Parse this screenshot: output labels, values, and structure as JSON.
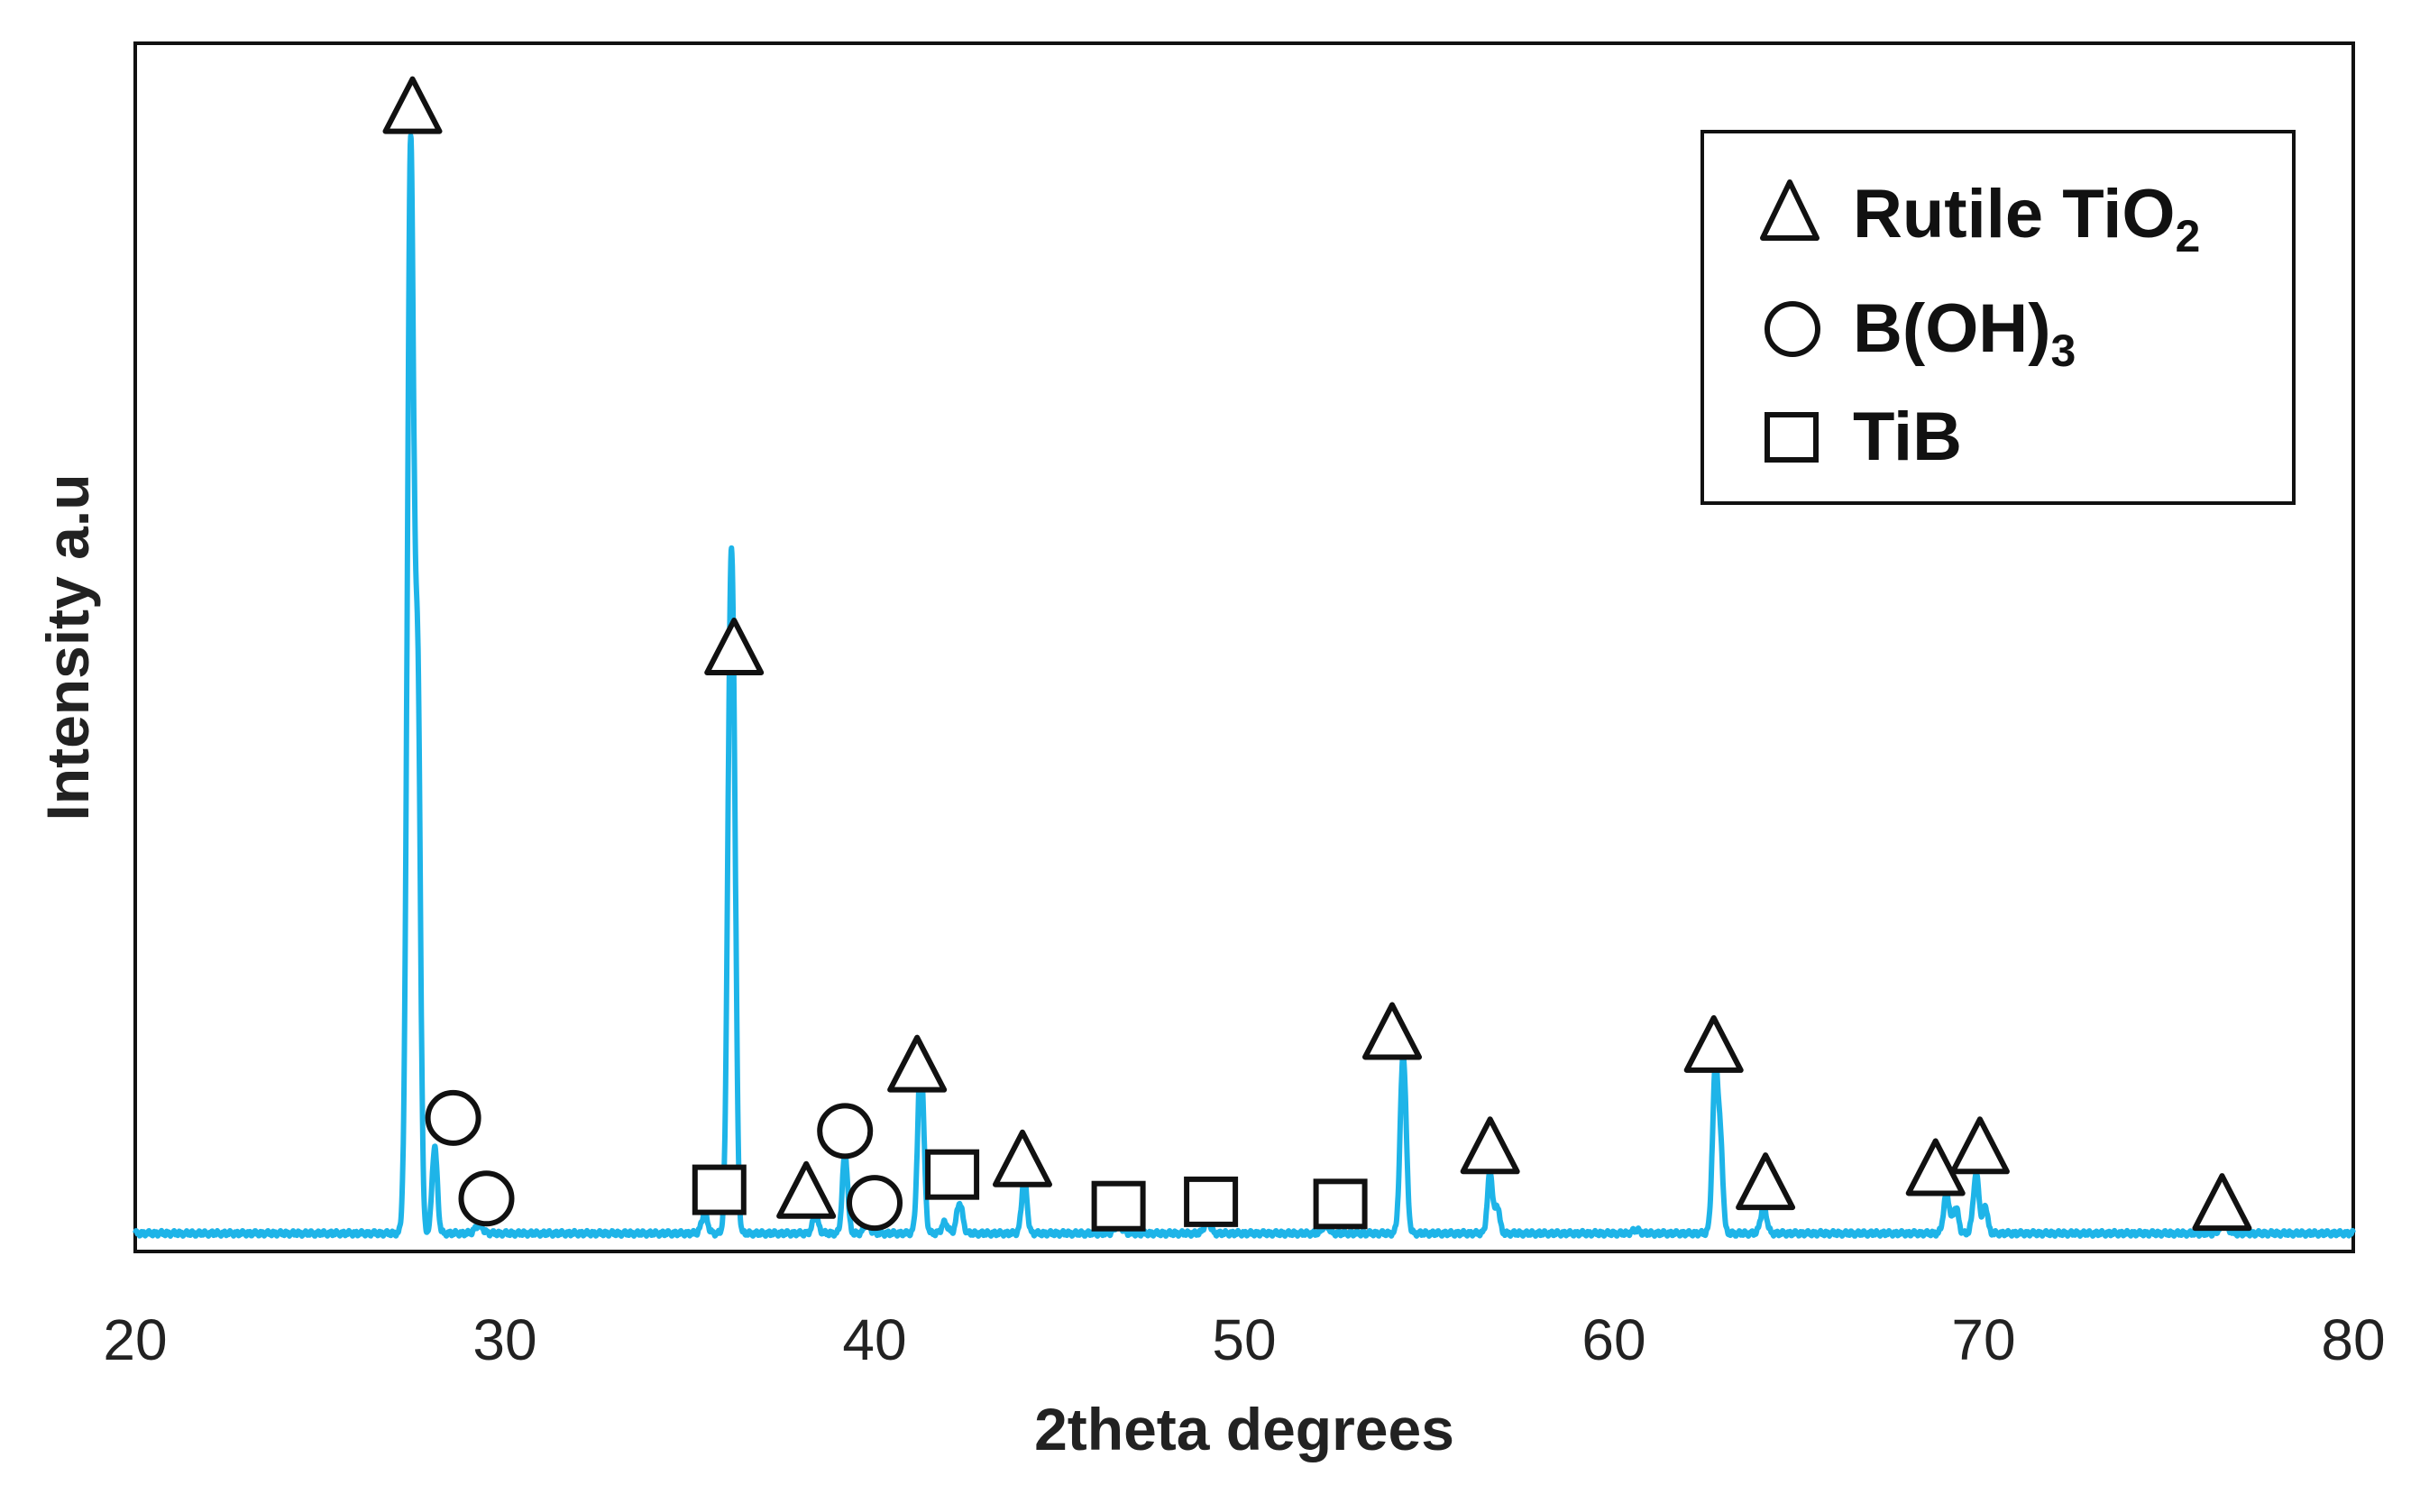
{
  "chart_data": {
    "type": "line",
    "title": "",
    "xlabel": "2theta degrees",
    "ylabel": "Intensity a.u",
    "xlim": [
      20,
      80
    ],
    "ylim": [
      0,
      100
    ],
    "xticks": [
      "20",
      "30",
      "40",
      "50",
      "60",
      "70",
      "80"
    ],
    "line_color": "#1EB4E8",
    "series": [
      {
        "name": "XRD pattern",
        "baseline": 1,
        "peaks": [
          {
            "x": 27.45,
            "h": 100,
            "w": 0.09
          },
          {
            "x": 27.65,
            "h": 45,
            "w": 0.07
          },
          {
            "x": 28.1,
            "h": 8,
            "w": 0.07
          },
          {
            "x": 29.3,
            "h": 0.8,
            "w": 0.1
          },
          {
            "x": 35.4,
            "h": 1.8,
            "w": 0.08
          },
          {
            "x": 36.1,
            "h": 51,
            "w": 0.08
          },
          {
            "x": 36.2,
            "h": 25,
            "w": 0.07
          },
          {
            "x": 38.4,
            "h": 1.5,
            "w": 0.08
          },
          {
            "x": 39.2,
            "h": 7.5,
            "w": 0.07
          },
          {
            "x": 39.8,
            "h": 1,
            "w": 0.08
          },
          {
            "x": 41.25,
            "h": 16.5,
            "w": 0.08
          },
          {
            "x": 41.9,
            "h": 1,
            "w": 0.08
          },
          {
            "x": 42.3,
            "h": 2.8,
            "w": 0.08
          },
          {
            "x": 44.05,
            "h": 5.2,
            "w": 0.07
          },
          {
            "x": 46.6,
            "h": 0.8,
            "w": 0.1
          },
          {
            "x": 49.0,
            "h": 1.2,
            "w": 0.08
          },
          {
            "x": 52.2,
            "h": 0.9,
            "w": 0.08
          },
          {
            "x": 54.3,
            "h": 16.5,
            "w": 0.08
          },
          {
            "x": 56.65,
            "h": 5.6,
            "w": 0.07
          },
          {
            "x": 56.85,
            "h": 2.5,
            "w": 0.06
          },
          {
            "x": 60.6,
            "h": 0.3,
            "w": 0.1
          },
          {
            "x": 62.75,
            "h": 15.5,
            "w": 0.08
          },
          {
            "x": 62.9,
            "h": 6,
            "w": 0.06
          },
          {
            "x": 64.05,
            "h": 2.5,
            "w": 0.08
          },
          {
            "x": 69.0,
            "h": 3.6,
            "w": 0.08
          },
          {
            "x": 69.25,
            "h": 2.4,
            "w": 0.07
          },
          {
            "x": 69.8,
            "h": 5.4,
            "w": 0.08
          },
          {
            "x": 70.05,
            "h": 2.5,
            "w": 0.06
          },
          {
            "x": 76.5,
            "h": 1,
            "w": 0.1
          }
        ]
      }
    ],
    "markers": [
      {
        "phase": "Rutile TiO2",
        "shape": "triangle",
        "x": 27.5,
        "y": 104.5
      },
      {
        "phase": "Rutile TiO2",
        "shape": "triangle",
        "x": 36.2,
        "y": 54.8
      },
      {
        "phase": "Rutile TiO2",
        "shape": "triangle",
        "x": 38.15,
        "y": 4.9
      },
      {
        "phase": "Rutile TiO2",
        "shape": "triangle",
        "x": 41.15,
        "y": 16.5
      },
      {
        "phase": "Rutile TiO2",
        "shape": "triangle",
        "x": 44.0,
        "y": 7.8
      },
      {
        "phase": "Rutile TiO2",
        "shape": "triangle",
        "x": 54.0,
        "y": 19.5
      },
      {
        "phase": "Rutile TiO2",
        "shape": "triangle",
        "x": 56.65,
        "y": 9.0
      },
      {
        "phase": "Rutile TiO2",
        "shape": "triangle",
        "x": 62.7,
        "y": 18.3
      },
      {
        "phase": "Rutile TiO2",
        "shape": "triangle",
        "x": 64.1,
        "y": 5.7
      },
      {
        "phase": "Rutile TiO2",
        "shape": "triangle",
        "x": 68.7,
        "y": 7.0
      },
      {
        "phase": "Rutile TiO2",
        "shape": "triangle",
        "x": 69.9,
        "y": 9.0
      },
      {
        "phase": "Rutile TiO2",
        "shape": "triangle",
        "x": 76.45,
        "y": 3.8
      },
      {
        "phase": "B(OH)3",
        "shape": "circle",
        "x": 28.6,
        "y": 11.6
      },
      {
        "phase": "B(OH)3",
        "shape": "circle",
        "x": 29.5,
        "y": 4.2
      },
      {
        "phase": "B(OH)3",
        "shape": "circle",
        "x": 39.2,
        "y": 10.4
      },
      {
        "phase": "B(OH)3",
        "shape": "circle",
        "x": 40.0,
        "y": 3.8
      },
      {
        "phase": "TiB",
        "shape": "square",
        "x": 35.8,
        "y": 5.0
      },
      {
        "phase": "TiB",
        "shape": "square",
        "x": 42.1,
        "y": 6.4
      },
      {
        "phase": "TiB",
        "shape": "square",
        "x": 46.6,
        "y": 3.5
      },
      {
        "phase": "TiB",
        "shape": "square",
        "x": 49.1,
        "y": 3.9
      },
      {
        "phase": "TiB",
        "shape": "square",
        "x": 52.6,
        "y": 3.7
      }
    ],
    "legend": {
      "position": "top-right",
      "entries": [
        {
          "shape": "triangle",
          "label": "Rutile TiO",
          "subscript": "2"
        },
        {
          "shape": "circle",
          "label": "B(OH)",
          "subscript": "3"
        },
        {
          "shape": "square",
          "label": "TiB",
          "subscript": ""
        }
      ]
    }
  }
}
